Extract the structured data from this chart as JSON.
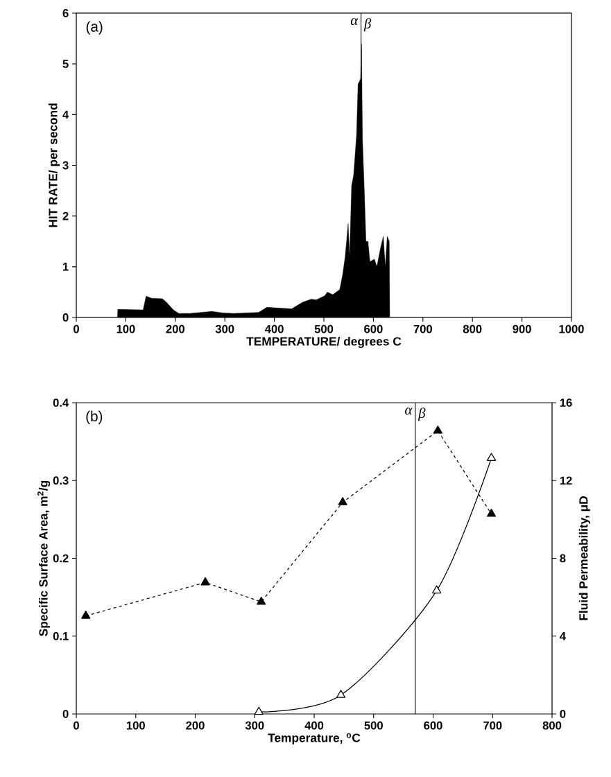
{
  "chart_data": [
    {
      "type": "area",
      "xlabel": "TEMPERATURE/ degrees C",
      "ylabel": "HIT RATE/ per second",
      "color": "#000000",
      "x": [
        83,
        84,
        135,
        141,
        152,
        174,
        182,
        196,
        207,
        229,
        274,
        296,
        318,
        368,
        385,
        435,
        457,
        474,
        485,
        502,
        507,
        518,
        532,
        538,
        543,
        549,
        552,
        556,
        560,
        566,
        569,
        574,
        576,
        578,
        582,
        585,
        589,
        593,
        602,
        607,
        614,
        620,
        624,
        628,
        632,
        633
      ],
      "values": [
        0,
        0.16,
        0.15,
        0.42,
        0.38,
        0.37,
        0.3,
        0.15,
        0.08,
        0.08,
        0.12,
        0.09,
        0.08,
        0.1,
        0.2,
        0.17,
        0.3,
        0.36,
        0.35,
        0.43,
        0.5,
        0.45,
        0.55,
        0.85,
        1.2,
        1.85,
        1.2,
        2.6,
        2.8,
        3.6,
        4.6,
        4.7,
        5.4,
        3.5,
        2.4,
        1.5,
        1.5,
        1.1,
        1.15,
        1.0,
        1.35,
        1.6,
        1.0,
        1.6,
        1.5,
        0
      ],
      "xlim": [
        0,
        1000
      ],
      "xticks": [
        0,
        100,
        200,
        300,
        400,
        500,
        600,
        700,
        800,
        900,
        1000
      ],
      "ylim": [
        0,
        6
      ],
      "yticks": [
        0,
        1,
        2,
        3,
        4,
        5,
        6
      ],
      "ref_lines": [
        {
          "axis": "x",
          "value": 575,
          "color": "#000000"
        }
      ],
      "annotations": [
        "(a)",
        "α",
        "β"
      ]
    },
    {
      "type": "line",
      "xlabel": "Temperature, $^{o}$C",
      "ylabel": "Specific Surface Area, m$^{2}$/g",
      "y2label": "Fluid Permeability, μD",
      "series": [
        {
          "color": "#000000",
          "line_style": "dashed",
          "marker": "triangle",
          "x": [
            16,
            217,
            311,
            448,
            608,
            698
          ],
          "values": [
            0.126,
            0.169,
            0.144,
            0.272,
            0.364,
            0.257
          ]
        },
        {
          "color": "#000000",
          "line_style": "solid",
          "marker": "triangle",
          "axis": "y2",
          "x": [
            307,
            445,
            606,
            698
          ],
          "values": [
            0.1,
            0.97,
            6.34,
            13.15
          ]
        }
      ],
      "xlim": [
        0,
        800
      ],
      "xticks": [
        0,
        100,
        200,
        300,
        400,
        500,
        600,
        700,
        800
      ],
      "ylim": [
        0,
        0.4
      ],
      "yticks": [
        0,
        0.1,
        0.2,
        0.3,
        0.4
      ],
      "y2lim": [
        0,
        16
      ],
      "y2ticks": [
        0,
        4,
        8,
        12,
        16
      ],
      "ref_lines": [
        {
          "axis": "x",
          "value": 570,
          "color": "#000000"
        }
      ],
      "annotations": [
        "(b)",
        "α",
        "β"
      ]
    }
  ]
}
